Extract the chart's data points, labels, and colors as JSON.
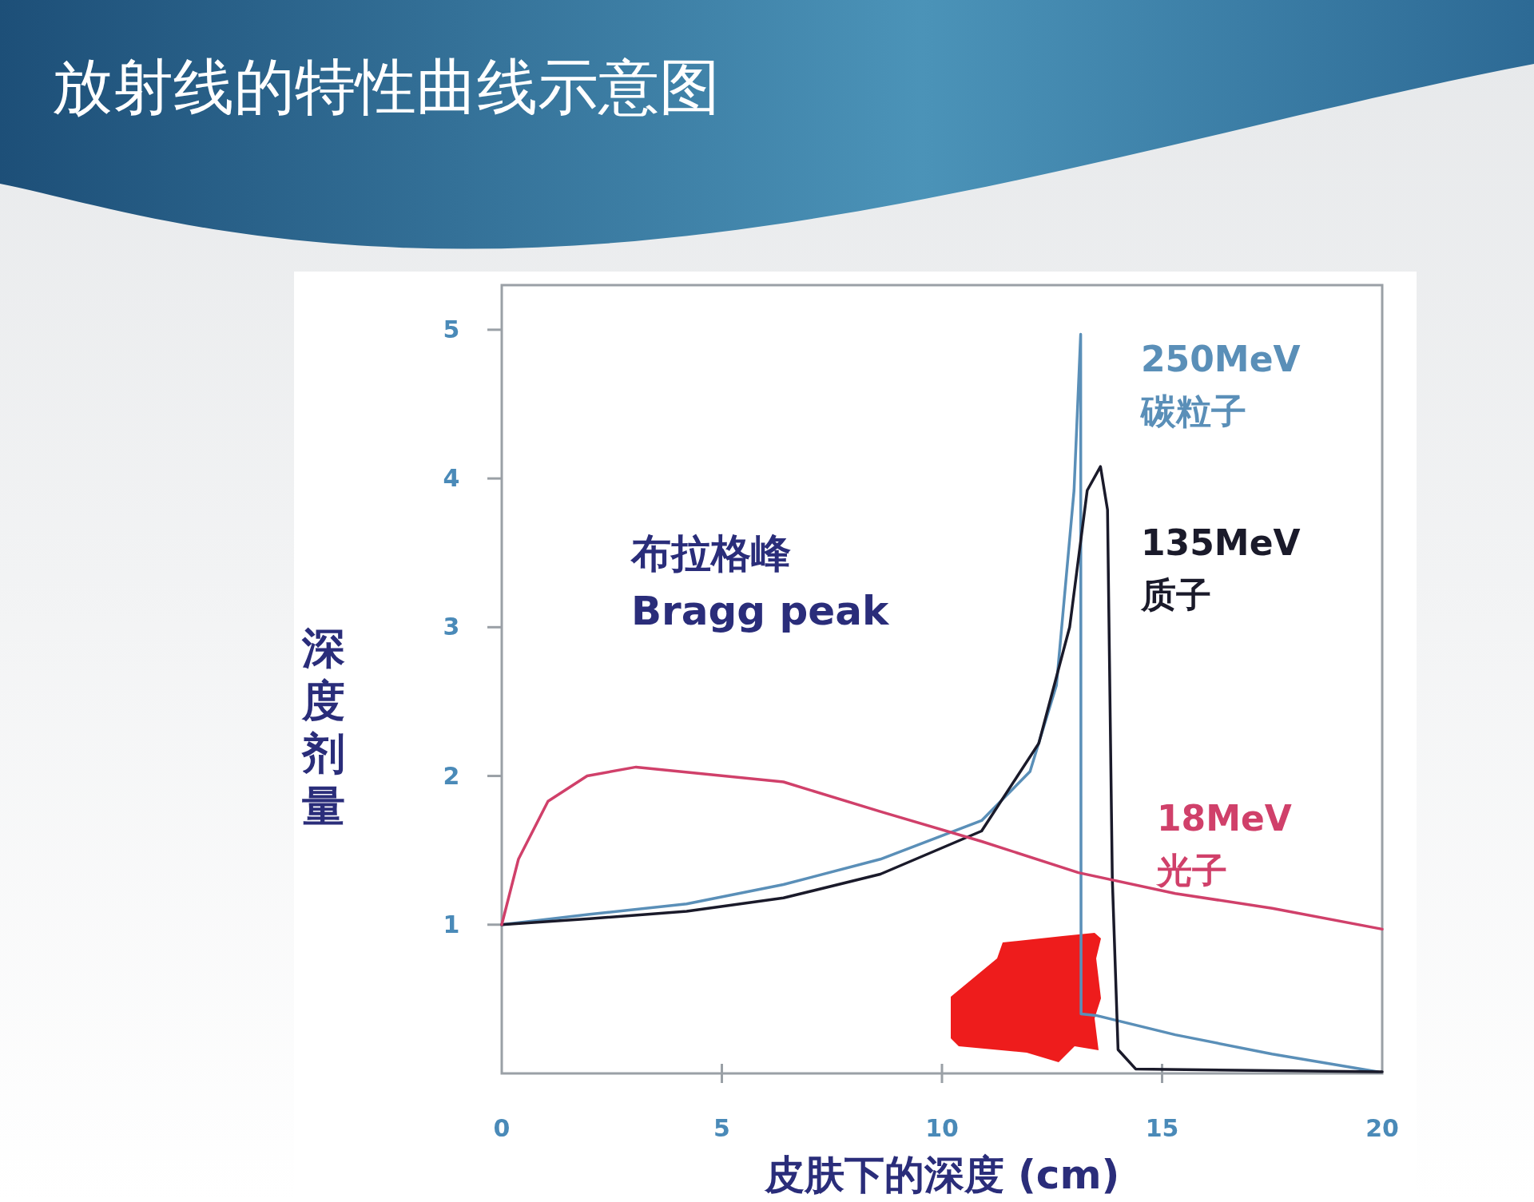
{
  "chart_data": {
    "type": "line",
    "title": "放射线的特性曲线示意图",
    "xlabel": "皮肤下的深度 (cm)",
    "ylabel": "深度剂量",
    "xlim": [
      0,
      20
    ],
    "xticks": [
      0,
      5,
      10,
      15,
      20
    ],
    "ylim": [
      0,
      5.3
    ],
    "yticks": [
      1,
      2,
      3,
      4,
      5
    ],
    "grid": false,
    "marker": "none",
    "line_style": "solid",
    "annotations": [
      "布拉格峰\nBragg peak"
    ],
    "series": [
      {
        "name": "250MeV\n碳粒子",
        "color": "#5a8fb8",
        "x": [
          0,
          2,
          4.2,
          6.4,
          8.6,
          10.9,
          12.0,
          12.6,
          13.0,
          13.15,
          13.16,
          13.5,
          15.3,
          17.5,
          19.9
        ],
        "values": [
          1.0,
          1.07,
          1.14,
          1.27,
          1.44,
          1.7,
          2.03,
          2.61,
          3.92,
          4.97,
          0.4,
          0.39,
          0.26,
          0.13,
          0.01
        ]
      },
      {
        "name": "135MeV\n质子",
        "color": "#1a1a2a",
        "x": [
          0,
          2,
          4.2,
          6.4,
          8.6,
          10.9,
          12.2,
          12.9,
          13.3,
          13.6,
          13.76,
          13.87,
          14.0,
          14.4,
          20
        ],
        "values": [
          1.0,
          1.04,
          1.09,
          1.18,
          1.34,
          1.63,
          2.22,
          3.0,
          3.92,
          4.08,
          3.79,
          1.31,
          0.16,
          0.03,
          0.01
        ]
      },
      {
        "name": "18MeV\n光子",
        "color": "#d0406a",
        "x": [
          0,
          0.38,
          1.05,
          1.94,
          3.05,
          6.4,
          8.6,
          10.9,
          13.1,
          15.3,
          17.5,
          20
        ],
        "values": [
          1.0,
          1.44,
          1.83,
          2.0,
          2.06,
          1.96,
          1.76,
          1.56,
          1.35,
          1.21,
          1.11,
          0.97
        ]
      }
    ]
  }
}
